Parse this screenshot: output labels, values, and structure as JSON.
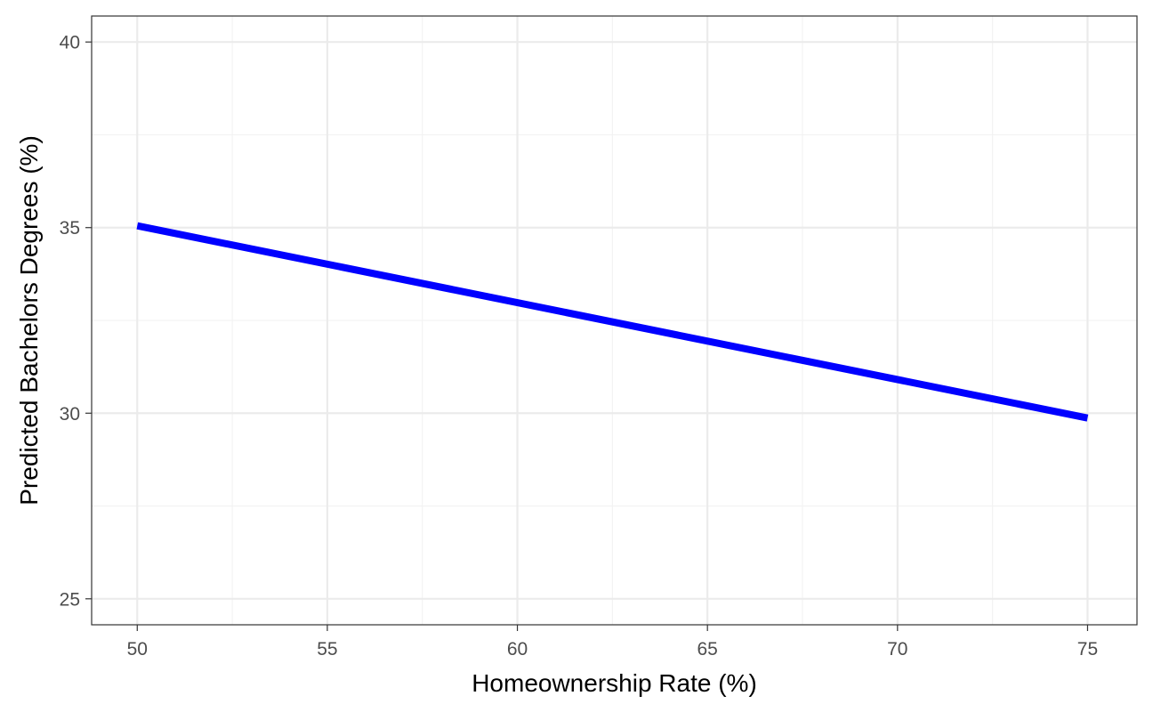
{
  "chart_data": {
    "type": "line",
    "title": "",
    "xlabel": "Homeownership Rate (%)",
    "ylabel": "Predicted Bachelors Degrees (%)",
    "xlim": [
      48.8,
      76.3
    ],
    "ylim": [
      24.3,
      40.7
    ],
    "x_ticks": [
      50,
      55,
      60,
      65,
      70,
      75
    ],
    "x_tick_labels": [
      "50",
      "55",
      "60",
      "65",
      "70",
      "75"
    ],
    "x_minor_ticks": [
      52.5,
      57.5,
      62.5,
      67.5,
      72.5
    ],
    "y_ticks": [
      25,
      30,
      35,
      40
    ],
    "y_tick_labels": [
      "25",
      "30",
      "35",
      "40"
    ],
    "y_minor_ticks": [
      27.5,
      32.5,
      37.5
    ],
    "grid": true,
    "legend": "none",
    "series": [
      {
        "x": [
          50,
          75
        ],
        "y": [
          35.05,
          29.87
        ],
        "color": "#0000FF"
      }
    ]
  },
  "colors": {
    "line": "#0000FF",
    "grid_major": "#EBEBEB",
    "grid_minor": "#F2F2F2",
    "panel_border": "#333333",
    "tick_label": "#4D4D4D"
  }
}
